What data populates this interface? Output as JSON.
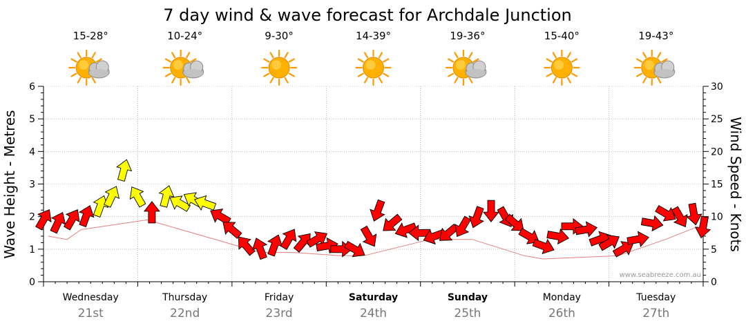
{
  "title": "7 day wind & wave forecast for Archdale Junction",
  "credit": "www.seabreeze.com.au",
  "colors": {
    "wave_arrow_red": "#ff0000",
    "wave_arrow_yellow": "#ffff00",
    "outline": "#000000",
    "grid": "#999999",
    "sun": "#ffb000"
  },
  "chart_data": {
    "type": "line",
    "title": "7 day wind & wave forecast for Archdale Junction",
    "ylabel": "Wave Height - Metres",
    "y2label": "Wind Speed - Knots",
    "ylim": [
      0,
      6
    ],
    "y2lim": [
      0,
      30
    ],
    "yticks": [
      "0",
      "1",
      "2",
      "3",
      "4",
      "5",
      "6"
    ],
    "y2ticks": [
      "0",
      "5",
      "10",
      "15",
      "20",
      "25",
      "30"
    ],
    "grid": true,
    "days": [
      {
        "name": "Wednesday",
        "date": "21st",
        "temp": "15-28°",
        "icon": "partly-cloudy-icon",
        "bold": false
      },
      {
        "name": "Thursday",
        "date": "22nd",
        "temp": "10-24°",
        "icon": "partly-cloudy-icon",
        "bold": false
      },
      {
        "name": "Friday",
        "date": "23rd",
        "temp": "9-30°",
        "icon": "sunny-icon",
        "bold": false
      },
      {
        "name": "Saturday",
        "date": "24th",
        "temp": "14-39°",
        "icon": "sunny-icon",
        "bold": true
      },
      {
        "name": "Sunday",
        "date": "25th",
        "temp": "19-36°",
        "icon": "partly-cloudy-icon",
        "bold": true
      },
      {
        "name": "Monday",
        "date": "26th",
        "temp": "15-40°",
        "icon": "sunny-icon",
        "bold": false
      },
      {
        "name": "Tuesday",
        "date": "27th",
        "temp": "19-43°",
        "icon": "partly-cloudy-icon",
        "bold": false
      }
    ],
    "series": [
      {
        "name": "wind",
        "points": [
          {
            "day": 0.0,
            "knots": 9.5,
            "dir": 30,
            "color": "red"
          },
          {
            "day": 0.15,
            "knots": 9.0,
            "dir": 25,
            "color": "red"
          },
          {
            "day": 0.3,
            "knots": 9.5,
            "dir": 30,
            "color": "red"
          },
          {
            "day": 0.45,
            "knots": 10.0,
            "dir": 20,
            "color": "red"
          },
          {
            "day": 0.6,
            "knots": 11.5,
            "dir": 20,
            "color": "yellow"
          },
          {
            "day": 0.72,
            "knots": 13.0,
            "dir": 25,
            "color": "yellow"
          },
          {
            "day": 0.85,
            "knots": 17.0,
            "dir": 15,
            "color": "yellow"
          },
          {
            "day": 1.0,
            "knots": 13.0,
            "dir": 330,
            "color": "yellow"
          },
          {
            "day": 1.15,
            "knots": 10.5,
            "dir": 0,
            "color": "red"
          },
          {
            "day": 1.3,
            "knots": 13.0,
            "dir": 15,
            "color": "yellow"
          },
          {
            "day": 1.45,
            "knots": 12.0,
            "dir": 300,
            "color": "yellow"
          },
          {
            "day": 1.6,
            "knots": 12.5,
            "dir": 300,
            "color": "yellow"
          },
          {
            "day": 1.72,
            "knots": 12.0,
            "dir": 290,
            "color": "yellow"
          },
          {
            "day": 1.88,
            "knots": 10.0,
            "dir": 300,
            "color": "red"
          },
          {
            "day": 2.0,
            "knots": 8.0,
            "dir": 310,
            "color": "red"
          },
          {
            "day": 2.15,
            "knots": 5.5,
            "dir": 320,
            "color": "red"
          },
          {
            "day": 2.3,
            "knots": 5.0,
            "dir": 340,
            "color": "red"
          },
          {
            "day": 2.45,
            "knots": 5.5,
            "dir": 20,
            "color": "red"
          },
          {
            "day": 2.6,
            "knots": 6.5,
            "dir": 30,
            "color": "red"
          },
          {
            "day": 2.75,
            "knots": 6.0,
            "dir": 40,
            "color": "red"
          },
          {
            "day": 2.9,
            "knots": 6.5,
            "dir": 60,
            "color": "red"
          },
          {
            "day": 3.0,
            "knots": 5.5,
            "dir": 80,
            "color": "red"
          },
          {
            "day": 3.15,
            "knots": 5.0,
            "dir": 90,
            "color": "red"
          },
          {
            "day": 3.3,
            "knots": 5.0,
            "dir": 120,
            "color": "red"
          },
          {
            "day": 3.45,
            "knots": 7.0,
            "dir": 150,
            "color": "red"
          },
          {
            "day": 3.55,
            "knots": 11.0,
            "dir": 200,
            "color": "red"
          },
          {
            "day": 3.7,
            "knots": 9.0,
            "dir": 230,
            "color": "red"
          },
          {
            "day": 3.85,
            "knots": 8.0,
            "dir": 250,
            "color": "red"
          },
          {
            "day": 4.0,
            "knots": 7.5,
            "dir": 270,
            "color": "red"
          },
          {
            "day": 4.15,
            "knots": 7.0,
            "dir": 250,
            "color": "red"
          },
          {
            "day": 4.3,
            "knots": 7.5,
            "dir": 230,
            "color": "red"
          },
          {
            "day": 4.45,
            "knots": 8.5,
            "dir": 210,
            "color": "red"
          },
          {
            "day": 4.6,
            "knots": 10.0,
            "dir": 200,
            "color": "red"
          },
          {
            "day": 4.75,
            "knots": 11.0,
            "dir": 180,
            "color": "red"
          },
          {
            "day": 4.9,
            "knots": 10.0,
            "dir": 150,
            "color": "red"
          },
          {
            "day": 5.0,
            "knots": 9.0,
            "dir": 130,
            "color": "red"
          },
          {
            "day": 5.15,
            "knots": 7.0,
            "dir": 120,
            "color": "red"
          },
          {
            "day": 5.3,
            "knots": 5.5,
            "dir": 110,
            "color": "red"
          },
          {
            "day": 5.45,
            "knots": 7.0,
            "dir": 100,
            "color": "red"
          },
          {
            "day": 5.6,
            "knots": 8.5,
            "dir": 90,
            "color": "red"
          },
          {
            "day": 5.75,
            "knots": 8.0,
            "dir": 80,
            "color": "red"
          },
          {
            "day": 5.9,
            "knots": 6.5,
            "dir": 70,
            "color": "red"
          },
          {
            "day": 6.0,
            "knots": 6.0,
            "dir": 60,
            "color": "red"
          },
          {
            "day": 6.15,
            "knots": 5.0,
            "dir": 60,
            "color": "red"
          },
          {
            "day": 6.3,
            "knots": 6.5,
            "dir": 80,
            "color": "red"
          },
          {
            "day": 6.45,
            "knots": 9.0,
            "dir": 100,
            "color": "red"
          },
          {
            "day": 6.6,
            "knots": 10.5,
            "dir": 120,
            "color": "red"
          },
          {
            "day": 6.75,
            "knots": 10.0,
            "dir": 150,
            "color": "red"
          },
          {
            "day": 6.9,
            "knots": 10.5,
            "dir": 170,
            "color": "red"
          },
          {
            "day": 7.0,
            "knots": 8.5,
            "dir": 190,
            "color": "red"
          }
        ]
      },
      {
        "name": "wave",
        "points": [
          {
            "day": 0.05,
            "m": 1.4
          },
          {
            "day": 0.25,
            "m": 1.3
          },
          {
            "day": 0.4,
            "m": 1.6
          },
          {
            "day": 1.1,
            "m": 1.9
          },
          {
            "day": 2.3,
            "m": 0.9
          },
          {
            "day": 2.65,
            "m": 0.9
          },
          {
            "day": 3.15,
            "m": 0.8
          },
          {
            "day": 3.4,
            "m": 0.8
          },
          {
            "day": 4.1,
            "m": 1.3
          },
          {
            "day": 4.55,
            "m": 1.3
          },
          {
            "day": 5.1,
            "m": 0.8
          },
          {
            "day": 5.3,
            "m": 0.7
          },
          {
            "day": 6.1,
            "m": 0.8
          },
          {
            "day": 6.6,
            "m": 1.3
          },
          {
            "day": 6.95,
            "m": 1.7
          }
        ]
      }
    ]
  }
}
